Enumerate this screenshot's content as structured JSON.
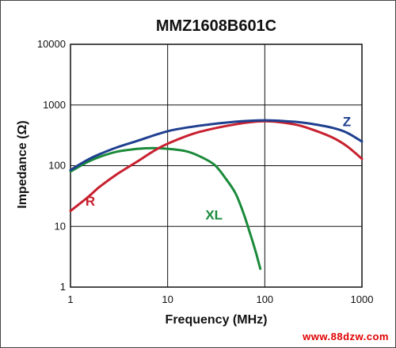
{
  "chart_data": {
    "type": "line",
    "title": "MMZ1608B601C",
    "xlabel": "Frequency (MHz)",
    "ylabel": "Impedance (Ω)",
    "x_scale": "log",
    "y_scale": "log",
    "xlim": [
      1,
      1000
    ],
    "ylim": [
      1,
      10000
    ],
    "x_ticks": [
      "1",
      "10",
      "100",
      "1000"
    ],
    "y_ticks": [
      "10000",
      "1000",
      "100",
      "10",
      "1"
    ],
    "grid": true,
    "legend": "inline labels",
    "series": [
      {
        "name": "Z",
        "color": "#1f3f8f",
        "x": [
          1,
          1.5,
          2,
          3,
          5,
          10,
          20,
          50,
          100,
          200,
          300,
          500,
          700,
          1000
        ],
        "y": [
          85,
          125,
          155,
          200,
          260,
          370,
          450,
          530,
          560,
          530,
          490,
          420,
          350,
          250
        ]
      },
      {
        "name": "R",
        "color": "#c8202f",
        "x": [
          1,
          1.5,
          2,
          3,
          5,
          7,
          10,
          20,
          50,
          100,
          200,
          300,
          500,
          700,
          1000
        ],
        "y": [
          18,
          30,
          45,
          72,
          120,
          170,
          230,
          350,
          480,
          540,
          480,
          400,
          290,
          210,
          130
        ]
      },
      {
        "name": "XL",
        "color": "#1a8a3a",
        "x": [
          1,
          1.5,
          2,
          3,
          5,
          7,
          10,
          15,
          20,
          30,
          40,
          50,
          60,
          70,
          80,
          85,
          90
        ],
        "y": [
          80,
          115,
          140,
          170,
          190,
          195,
          190,
          175,
          150,
          105,
          60,
          35,
          17,
          8,
          4,
          2.8,
          2
        ]
      }
    ]
  },
  "watermark": "www.88dzw.com"
}
